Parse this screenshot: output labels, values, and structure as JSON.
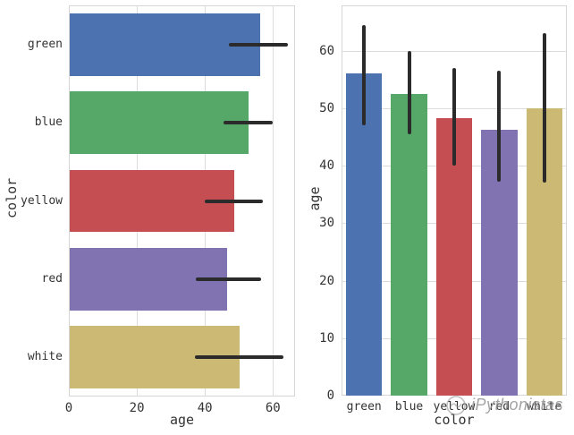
{
  "figure": {
    "background": "#ffffff",
    "grid_color": "#dcdcdc",
    "spine_color": "#d5d5d5",
    "errorbar_color": "#2b2b2b",
    "text_color": "#333333"
  },
  "watermark": {
    "text": "iPythonistas",
    "logo_icon": "circle-snake-logo",
    "color": "#949494"
  },
  "chart_data": [
    {
      "type": "bar",
      "orientation": "horizontal",
      "title": "",
      "xlabel": "age",
      "ylabel": "color",
      "categories": [
        "green",
        "blue",
        "yellow",
        "red",
        "white"
      ],
      "values": [
        56,
        52.5,
        48.3,
        46.2,
        50
      ],
      "ci_low": [
        47,
        45.5,
        40,
        37.2,
        37
      ],
      "ci_high": [
        64.5,
        60,
        57,
        56.5,
        63
      ],
      "bar_colors": [
        "#4c72b0",
        "#55a868",
        "#c44e52",
        "#8172b2",
        "#ccb974"
      ],
      "xlim": [
        0,
        66.5
      ],
      "xticks": [
        0,
        20,
        40,
        60
      ],
      "grid": true,
      "legend": false
    },
    {
      "type": "bar",
      "orientation": "vertical",
      "title": "",
      "xlabel": "color",
      "ylabel": "age",
      "categories": [
        "green",
        "blue",
        "yellow",
        "red",
        "white"
      ],
      "values": [
        56,
        52.5,
        48.3,
        46.2,
        50
      ],
      "ci_low": [
        47,
        45.5,
        40,
        37.2,
        37
      ],
      "ci_high": [
        64.5,
        60,
        57,
        56.5,
        63
      ],
      "bar_colors": [
        "#4c72b0",
        "#55a868",
        "#c44e52",
        "#8172b2",
        "#ccb974"
      ],
      "ylim": [
        0,
        67.9
      ],
      "yticks": [
        0,
        10,
        20,
        30,
        40,
        50,
        60
      ],
      "grid": true,
      "legend": false
    }
  ]
}
